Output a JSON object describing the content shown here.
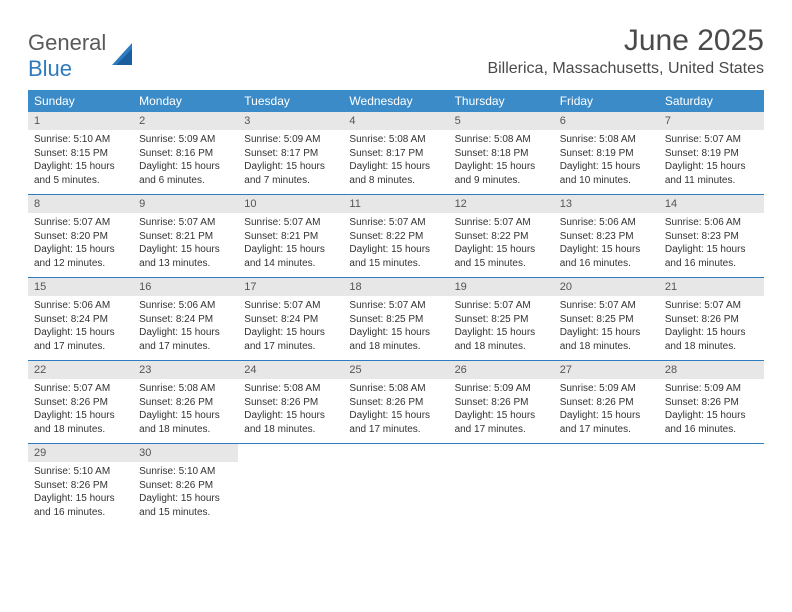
{
  "brand": {
    "part1": "General",
    "part2": "Blue"
  },
  "title": "June 2025",
  "location": "Billerica, Massachusetts, United States",
  "colors": {
    "header_bg": "#3b8bc8",
    "header_text": "#ffffff",
    "daynum_bg": "#e7e7e7",
    "rule": "#2f7bbf",
    "text": "#333333",
    "brand_gray": "#5a5a5a",
    "brand_blue": "#2f7bbf"
  },
  "dow": [
    "Sunday",
    "Monday",
    "Tuesday",
    "Wednesday",
    "Thursday",
    "Friday",
    "Saturday"
  ],
  "weeks": [
    [
      {
        "n": "1",
        "sr": "5:10 AM",
        "ss": "8:15 PM",
        "dl": "15 hours and 5 minutes."
      },
      {
        "n": "2",
        "sr": "5:09 AM",
        "ss": "8:16 PM",
        "dl": "15 hours and 6 minutes."
      },
      {
        "n": "3",
        "sr": "5:09 AM",
        "ss": "8:17 PM",
        "dl": "15 hours and 7 minutes."
      },
      {
        "n": "4",
        "sr": "5:08 AM",
        "ss": "8:17 PM",
        "dl": "15 hours and 8 minutes."
      },
      {
        "n": "5",
        "sr": "5:08 AM",
        "ss": "8:18 PM",
        "dl": "15 hours and 9 minutes."
      },
      {
        "n": "6",
        "sr": "5:08 AM",
        "ss": "8:19 PM",
        "dl": "15 hours and 10 minutes."
      },
      {
        "n": "7",
        "sr": "5:07 AM",
        "ss": "8:19 PM",
        "dl": "15 hours and 11 minutes."
      }
    ],
    [
      {
        "n": "8",
        "sr": "5:07 AM",
        "ss": "8:20 PM",
        "dl": "15 hours and 12 minutes."
      },
      {
        "n": "9",
        "sr": "5:07 AM",
        "ss": "8:21 PM",
        "dl": "15 hours and 13 minutes."
      },
      {
        "n": "10",
        "sr": "5:07 AM",
        "ss": "8:21 PM",
        "dl": "15 hours and 14 minutes."
      },
      {
        "n": "11",
        "sr": "5:07 AM",
        "ss": "8:22 PM",
        "dl": "15 hours and 15 minutes."
      },
      {
        "n": "12",
        "sr": "5:07 AM",
        "ss": "8:22 PM",
        "dl": "15 hours and 15 minutes."
      },
      {
        "n": "13",
        "sr": "5:06 AM",
        "ss": "8:23 PM",
        "dl": "15 hours and 16 minutes."
      },
      {
        "n": "14",
        "sr": "5:06 AM",
        "ss": "8:23 PM",
        "dl": "15 hours and 16 minutes."
      }
    ],
    [
      {
        "n": "15",
        "sr": "5:06 AM",
        "ss": "8:24 PM",
        "dl": "15 hours and 17 minutes."
      },
      {
        "n": "16",
        "sr": "5:06 AM",
        "ss": "8:24 PM",
        "dl": "15 hours and 17 minutes."
      },
      {
        "n": "17",
        "sr": "5:07 AM",
        "ss": "8:24 PM",
        "dl": "15 hours and 17 minutes."
      },
      {
        "n": "18",
        "sr": "5:07 AM",
        "ss": "8:25 PM",
        "dl": "15 hours and 18 minutes."
      },
      {
        "n": "19",
        "sr": "5:07 AM",
        "ss": "8:25 PM",
        "dl": "15 hours and 18 minutes."
      },
      {
        "n": "20",
        "sr": "5:07 AM",
        "ss": "8:25 PM",
        "dl": "15 hours and 18 minutes."
      },
      {
        "n": "21",
        "sr": "5:07 AM",
        "ss": "8:26 PM",
        "dl": "15 hours and 18 minutes."
      }
    ],
    [
      {
        "n": "22",
        "sr": "5:07 AM",
        "ss": "8:26 PM",
        "dl": "15 hours and 18 minutes."
      },
      {
        "n": "23",
        "sr": "5:08 AM",
        "ss": "8:26 PM",
        "dl": "15 hours and 18 minutes."
      },
      {
        "n": "24",
        "sr": "5:08 AM",
        "ss": "8:26 PM",
        "dl": "15 hours and 18 minutes."
      },
      {
        "n": "25",
        "sr": "5:08 AM",
        "ss": "8:26 PM",
        "dl": "15 hours and 17 minutes."
      },
      {
        "n": "26",
        "sr": "5:09 AM",
        "ss": "8:26 PM",
        "dl": "15 hours and 17 minutes."
      },
      {
        "n": "27",
        "sr": "5:09 AM",
        "ss": "8:26 PM",
        "dl": "15 hours and 17 minutes."
      },
      {
        "n": "28",
        "sr": "5:09 AM",
        "ss": "8:26 PM",
        "dl": "15 hours and 16 minutes."
      }
    ],
    [
      {
        "n": "29",
        "sr": "5:10 AM",
        "ss": "8:26 PM",
        "dl": "15 hours and 16 minutes."
      },
      {
        "n": "30",
        "sr": "5:10 AM",
        "ss": "8:26 PM",
        "dl": "15 hours and 15 minutes."
      },
      null,
      null,
      null,
      null,
      null
    ]
  ],
  "labels": {
    "sunrise": "Sunrise: ",
    "sunset": "Sunset: ",
    "daylight": "Daylight: "
  }
}
